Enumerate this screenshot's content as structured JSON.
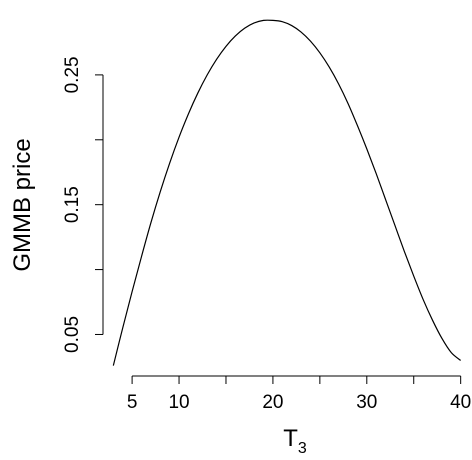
{
  "chart_data": {
    "type": "line",
    "title": "",
    "xlabel": "T",
    "xlabel_subscript": "3",
    "ylabel": "GMMB price",
    "xlim": [
      1.9,
      41.1
    ],
    "ylim": [
      0.018,
      0.3
    ],
    "x_ticks": [
      5,
      10,
      15,
      20,
      25,
      30,
      35,
      40
    ],
    "x_tick_labels": [
      "5",
      "10",
      "",
      "20",
      "",
      "30",
      "",
      "40"
    ],
    "y_ticks": [
      0.05,
      0.1,
      0.15,
      0.2,
      0.25
    ],
    "y_tick_labels": [
      "0.05",
      "",
      "0.15",
      "",
      "0.25"
    ],
    "grid": false,
    "series": [
      {
        "x": [
          3,
          4,
          5,
          6,
          7,
          8,
          9,
          10,
          11,
          12,
          13,
          14,
          15,
          16,
          17,
          18,
          19,
          20,
          21,
          22,
          23,
          24,
          25,
          26,
          27,
          28,
          29,
          30,
          31,
          32,
          33,
          34,
          35,
          36,
          37,
          38,
          39,
          40
        ],
        "y": [
          0.026,
          0.055,
          0.083,
          0.11,
          0.136,
          0.16,
          0.182,
          0.202,
          0.22,
          0.236,
          0.25,
          0.262,
          0.272,
          0.28,
          0.286,
          0.29,
          0.292,
          0.292,
          0.291,
          0.288,
          0.283,
          0.276,
          0.267,
          0.256,
          0.243,
          0.228,
          0.211,
          0.193,
          0.174,
          0.154,
          0.134,
          0.114,
          0.095,
          0.077,
          0.061,
          0.047,
          0.036,
          0.03
        ]
      }
    ]
  }
}
